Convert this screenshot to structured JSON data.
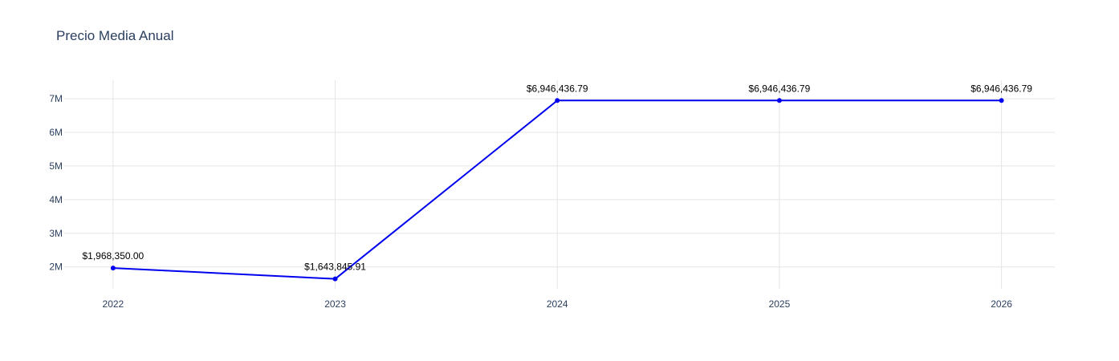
{
  "chart_data": {
    "type": "line",
    "title": "Precio Media Anual",
    "xlabel": "",
    "ylabel": "",
    "x": [
      "2022",
      "2023",
      "2024",
      "2025",
      "2026"
    ],
    "x_numeric": [
      2022,
      2023,
      2024,
      2025,
      2026
    ],
    "xlim": [
      2021.78,
      2026.24
    ],
    "ylim": [
      1350000,
      7550000
    ],
    "y_ticks": [
      2000000,
      3000000,
      4000000,
      5000000,
      6000000,
      7000000
    ],
    "y_tick_labels": [
      "2M",
      "3M",
      "4M",
      "5M",
      "6M",
      "7M"
    ],
    "grid": true,
    "legend": "none",
    "series": [
      {
        "color": "#0000ee",
        "values": [
          1968350.0,
          1643845.91,
          6946436.79,
          6946436.79,
          6946436.79
        ],
        "labels": [
          "$1,968,350.00",
          "$1,643,845.91",
          "$6,946,436.79",
          "$6,946,436.79",
          "$6,946,436.79"
        ]
      }
    ]
  }
}
